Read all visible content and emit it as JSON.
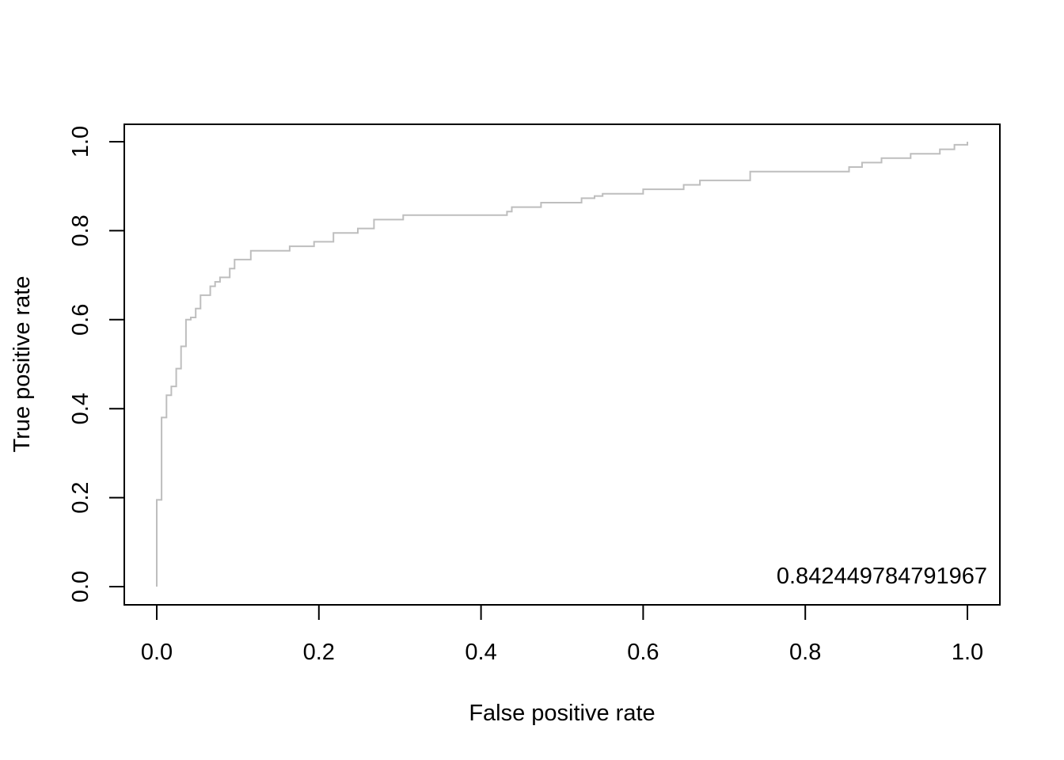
{
  "chart_data": {
    "type": "line",
    "title": "",
    "xlabel": "False positive rate",
    "ylabel": "True positive rate",
    "xlim": [
      0,
      1
    ],
    "ylim": [
      0,
      1
    ],
    "x_ticks": [
      0.0,
      0.2,
      0.4,
      0.6,
      0.8,
      1.0
    ],
    "y_ticks": [
      0.0,
      0.2,
      0.4,
      0.6,
      0.8,
      1.0
    ],
    "x_tick_labels": [
      "0.0",
      "0.2",
      "0.4",
      "0.6",
      "0.8",
      "1.0"
    ],
    "y_tick_labels": [
      "0.0",
      "0.2",
      "0.4",
      "0.6",
      "0.8",
      "1.0"
    ],
    "grid": false,
    "series_color": "#bebebe",
    "annotation": "0.842449784791967",
    "series": [
      {
        "step": true,
        "points": [
          [
            0.0,
            0.0
          ],
          [
            0.0,
            0.195
          ],
          [
            0.006,
            0.195
          ],
          [
            0.006,
            0.38
          ],
          [
            0.012,
            0.38
          ],
          [
            0.012,
            0.43
          ],
          [
            0.018,
            0.43
          ],
          [
            0.018,
            0.45
          ],
          [
            0.024,
            0.45
          ],
          [
            0.024,
            0.49
          ],
          [
            0.03,
            0.49
          ],
          [
            0.03,
            0.54
          ],
          [
            0.036,
            0.54
          ],
          [
            0.036,
            0.6
          ],
          [
            0.042,
            0.6
          ],
          [
            0.042,
            0.605
          ],
          [
            0.048,
            0.605
          ],
          [
            0.048,
            0.625
          ],
          [
            0.054,
            0.625
          ],
          [
            0.054,
            0.655
          ],
          [
            0.066,
            0.655
          ],
          [
            0.066,
            0.675
          ],
          [
            0.072,
            0.675
          ],
          [
            0.072,
            0.685
          ],
          [
            0.078,
            0.685
          ],
          [
            0.078,
            0.695
          ],
          [
            0.09,
            0.695
          ],
          [
            0.09,
            0.715
          ],
          [
            0.096,
            0.715
          ],
          [
            0.096,
            0.735
          ],
          [
            0.116,
            0.735
          ],
          [
            0.116,
            0.755
          ],
          [
            0.164,
            0.755
          ],
          [
            0.164,
            0.765
          ],
          [
            0.194,
            0.765
          ],
          [
            0.194,
            0.775
          ],
          [
            0.218,
            0.775
          ],
          [
            0.218,
            0.795
          ],
          [
            0.248,
            0.795
          ],
          [
            0.248,
            0.805
          ],
          [
            0.268,
            0.805
          ],
          [
            0.268,
            0.825
          ],
          [
            0.304,
            0.825
          ],
          [
            0.304,
            0.835
          ],
          [
            0.432,
            0.835
          ],
          [
            0.432,
            0.843
          ],
          [
            0.438,
            0.843
          ],
          [
            0.438,
            0.853
          ],
          [
            0.474,
            0.853
          ],
          [
            0.474,
            0.863
          ],
          [
            0.524,
            0.863
          ],
          [
            0.524,
            0.873
          ],
          [
            0.54,
            0.873
          ],
          [
            0.54,
            0.878
          ],
          [
            0.55,
            0.878
          ],
          [
            0.55,
            0.883
          ],
          [
            0.6,
            0.883
          ],
          [
            0.6,
            0.893
          ],
          [
            0.65,
            0.893
          ],
          [
            0.65,
            0.903
          ],
          [
            0.67,
            0.903
          ],
          [
            0.67,
            0.913
          ],
          [
            0.732,
            0.913
          ],
          [
            0.732,
            0.933
          ],
          [
            0.854,
            0.933
          ],
          [
            0.854,
            0.943
          ],
          [
            0.87,
            0.943
          ],
          [
            0.87,
            0.953
          ],
          [
            0.894,
            0.953
          ],
          [
            0.894,
            0.963
          ],
          [
            0.93,
            0.963
          ],
          [
            0.93,
            0.973
          ],
          [
            0.966,
            0.973
          ],
          [
            0.966,
            0.983
          ],
          [
            0.984,
            0.983
          ],
          [
            0.984,
            0.993
          ],
          [
            1.0,
            0.993
          ],
          [
            1.0,
            1.0
          ]
        ]
      }
    ]
  }
}
